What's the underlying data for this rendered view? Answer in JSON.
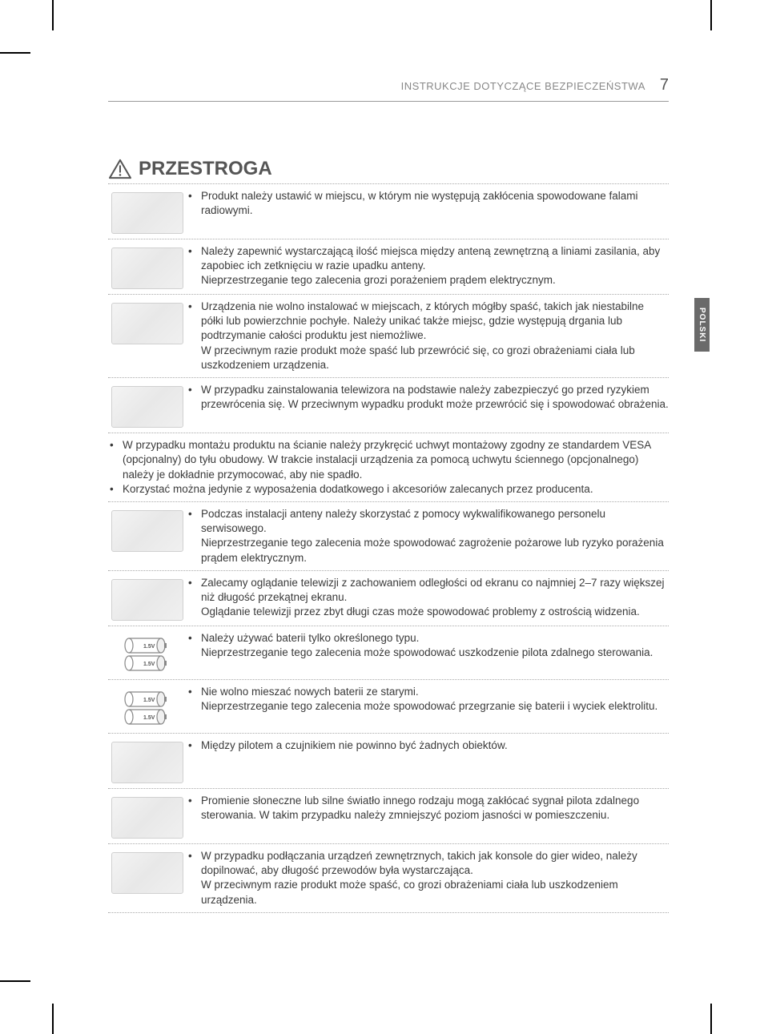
{
  "header": {
    "title": "INSTRUKCJE DOTYCZĄCE BEZPIECZEŃSTWA",
    "page_number": "7"
  },
  "side_tab": "POLSKI",
  "caution_heading": "PRZESTROGA",
  "rows": [
    {
      "type": "illus",
      "text": "Produkt należy ustawić w miejscu, w którym nie występują zakłócenia spowodowane falami radiowymi."
    },
    {
      "type": "illus",
      "text": "Należy zapewnić wystarczającą ilość miejsca między anteną zewnętrzną a liniami zasilania, aby zapobiec ich zetknięciu w razie upadku anteny.\nNieprzestrzeganie tego zalecenia grozi porażeniem prądem elektrycznym."
    },
    {
      "type": "illus",
      "text": "Urządzenia nie wolno instalować w miejscach, z których mógłby spaść, takich jak niestabilne półki lub powierzchnie pochyłe. Należy unikać także miejsc, gdzie występują drgania lub podtrzymanie całości produktu jest niemożliwe.\nW przeciwnym razie produkt może spaść lub przewrócić się, co grozi obrażeniami ciała lub uszkodzeniem urządzenia."
    },
    {
      "type": "illus",
      "text": "W przypadku zainstalowania telewizora na podstawie należy zabezpieczyć go przed ryzykiem przewrócenia się. W przeciwnym wypadku produkt może przewrócić się i spowodować obrażenia."
    },
    {
      "type": "full",
      "items": [
        "W przypadku montażu produktu na ścianie należy przykręcić uchwyt montażowy zgodny ze standardem VESA (opcjonalny) do tyłu obudowy. W trakcie instalacji urządzenia za pomocą uchwytu ściennego (opcjonalnego) należy je dokładnie przymocować, aby nie spadło.",
        "Korzystać można jedynie z wyposażenia dodatkowego i akcesoriów zalecanych przez producenta."
      ]
    },
    {
      "type": "illus",
      "text": "Podczas instalacji anteny należy skorzystać z pomocy wykwalifikowanego personelu serwisowego.\nNieprzestrzeganie tego zalecenia może spowodować zagrożenie pożarowe lub ryzyko porażenia prądem elektrycznym."
    },
    {
      "type": "illus",
      "text": "Zalecamy oglądanie telewizji z zachowaniem odległości od ekranu co najmniej 2–7 razy większej niż długość przekątnej ekranu.\nOglądanie telewizji przez zbyt długi czas może spowodować problemy z ostrością widzenia."
    },
    {
      "type": "illus",
      "illus_kind": "battery",
      "battery_label": "1.5V",
      "text": "Należy używać baterii tylko określonego typu.\nNieprzestrzeganie tego zalecenia może spowodować uszkodzenie pilota zdalnego sterowania."
    },
    {
      "type": "illus",
      "illus_kind": "battery",
      "battery_label": "1.5V",
      "text": "Nie wolno mieszać nowych baterii ze starymi.\nNieprzestrzeganie tego zalecenia może spowodować przegrzanie się baterii i wyciek elektrolitu."
    },
    {
      "type": "illus",
      "text": "Między pilotem a czujnikiem nie powinno być żadnych obiektów."
    },
    {
      "type": "illus",
      "text": "Promienie słoneczne lub silne światło innego rodzaju mogą zakłócać sygnał pilota zdalnego sterowania. W takim przypadku należy zmniejszyć poziom jasności w pomieszczeniu."
    },
    {
      "type": "illus",
      "text": "W przypadku podłączania urządzeń zewnętrznych, takich jak konsole do gier wideo, należy dopilnować, aby długość przewodów była wystarczająca.\nW przeciwnym razie produkt może spaść, co grozi obrażeniami ciała lub uszkodzeniem urządzenia."
    }
  ],
  "colors": {
    "text": "#3a3a3a",
    "header_text": "#888888",
    "page_num": "#555555",
    "border": "#aaaaaa",
    "tab_bg": "#6a6a6a",
    "tab_text": "#ffffff",
    "heading": "#555555"
  }
}
